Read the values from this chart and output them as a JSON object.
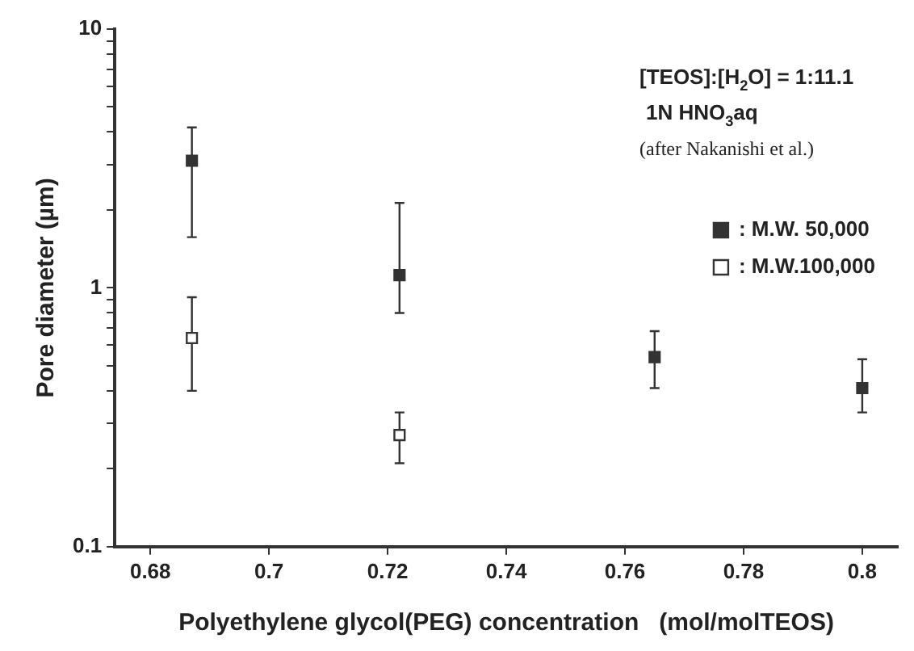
{
  "chart_data": {
    "type": "scatter",
    "xlabel": "Polyethylene glycol(PEG) concentration   (mol/molTEOS)",
    "ylabel": "Pore diameter (µm)",
    "annotations": [
      "[TEOS]:[H$_{2}$O] = 1:11.1",
      "1N HNO$_{3}$aq",
      "(after Nakanishi et al.)"
    ],
    "series": [
      {
        "name": ": M.W. 50,000",
        "color": "#333333",
        "x": [
          0.687,
          0.722,
          0.765,
          0.8
        ],
        "values": [
          3.1,
          1.12,
          0.54,
          0.41
        ],
        "errors": [
          [
            1.57,
            4.17
          ],
          [
            0.8,
            2.13
          ],
          [
            0.41,
            0.68
          ],
          [
            0.33,
            0.53
          ]
        ]
      },
      {
        "name": ": M.W.100,000",
        "color": "#ffffff",
        "x": [
          0.687,
          0.722
        ],
        "values": [
          0.64,
          0.27
        ],
        "errors": [
          [
            0.4,
            0.92
          ],
          [
            0.21,
            0.33
          ]
        ]
      }
    ],
    "xlim": [
      0.674,
      0.806
    ],
    "xticks": [
      0.68,
      0.7,
      0.72,
      0.74,
      0.76,
      0.78,
      0.8
    ],
    "ylim": [
      0.1,
      10
    ],
    "yticks": [
      0.1,
      {
        "value": 0.2,
        "label": null
      },
      {
        "value": 0.3,
        "label": null
      },
      {
        "value": 0.4,
        "label": null
      },
      {
        "value": 0.5,
        "label": null
      },
      {
        "value": 0.6,
        "label": null
      },
      {
        "value": 0.7,
        "label": null
      },
      {
        "value": 0.8,
        "label": null
      },
      {
        "value": 0.9,
        "label": null
      },
      1,
      {
        "value": 2,
        "label": null
      },
      {
        "value": 3,
        "label": null
      },
      {
        "value": 4,
        "label": null
      },
      {
        "value": 5,
        "label": null
      },
      {
        "value": 6,
        "label": null
      },
      {
        "value": 7,
        "label": null
      },
      {
        "value": 8,
        "label": null
      },
      {
        "value": 9,
        "label": null
      },
      10
    ],
    "log": "y",
    "grid": false,
    "legend": "top right",
    "marker": "square"
  }
}
